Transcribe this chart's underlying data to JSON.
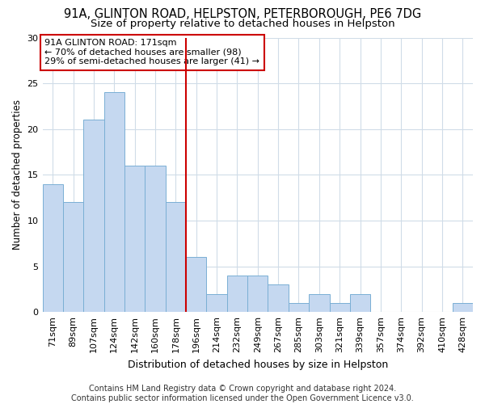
{
  "title1": "91A, GLINTON ROAD, HELPSTON, PETERBOROUGH, PE6 7DG",
  "title2": "Size of property relative to detached houses in Helpston",
  "xlabel": "Distribution of detached houses by size in Helpston",
  "ylabel": "Number of detached properties",
  "categories": [
    "71sqm",
    "89sqm",
    "107sqm",
    "124sqm",
    "142sqm",
    "160sqm",
    "178sqm",
    "196sqm",
    "214sqm",
    "232sqm",
    "249sqm",
    "267sqm",
    "285sqm",
    "303sqm",
    "321sqm",
    "339sqm",
    "357sqm",
    "374sqm",
    "392sqm",
    "410sqm",
    "428sqm"
  ],
  "values": [
    14,
    12,
    21,
    24,
    16,
    16,
    12,
    6,
    2,
    4,
    4,
    3,
    1,
    2,
    1,
    2,
    0,
    0,
    0,
    0,
    1
  ],
  "bar_color": "#c5d8f0",
  "bar_edge_color": "#7aafd4",
  "vline_x": 6.5,
  "vline_color": "#cc0000",
  "annotation_text": "91A GLINTON ROAD: 171sqm\n← 70% of detached houses are smaller (98)\n29% of semi-detached houses are larger (41) →",
  "annotation_box_color": "#ffffff",
  "annotation_box_edge_color": "#cc0000",
  "ylim": [
    0,
    30
  ],
  "yticks": [
    0,
    5,
    10,
    15,
    20,
    25,
    30
  ],
  "footer": "Contains HM Land Registry data © Crown copyright and database right 2024.\nContains public sector information licensed under the Open Government Licence v3.0.",
  "background_color": "#ffffff",
  "grid_color": "#d0dce8",
  "title1_fontsize": 10.5,
  "title2_fontsize": 9.5,
  "xlabel_fontsize": 9,
  "ylabel_fontsize": 8.5,
  "tick_fontsize": 8,
  "footer_fontsize": 7,
  "ann_fontsize": 8
}
